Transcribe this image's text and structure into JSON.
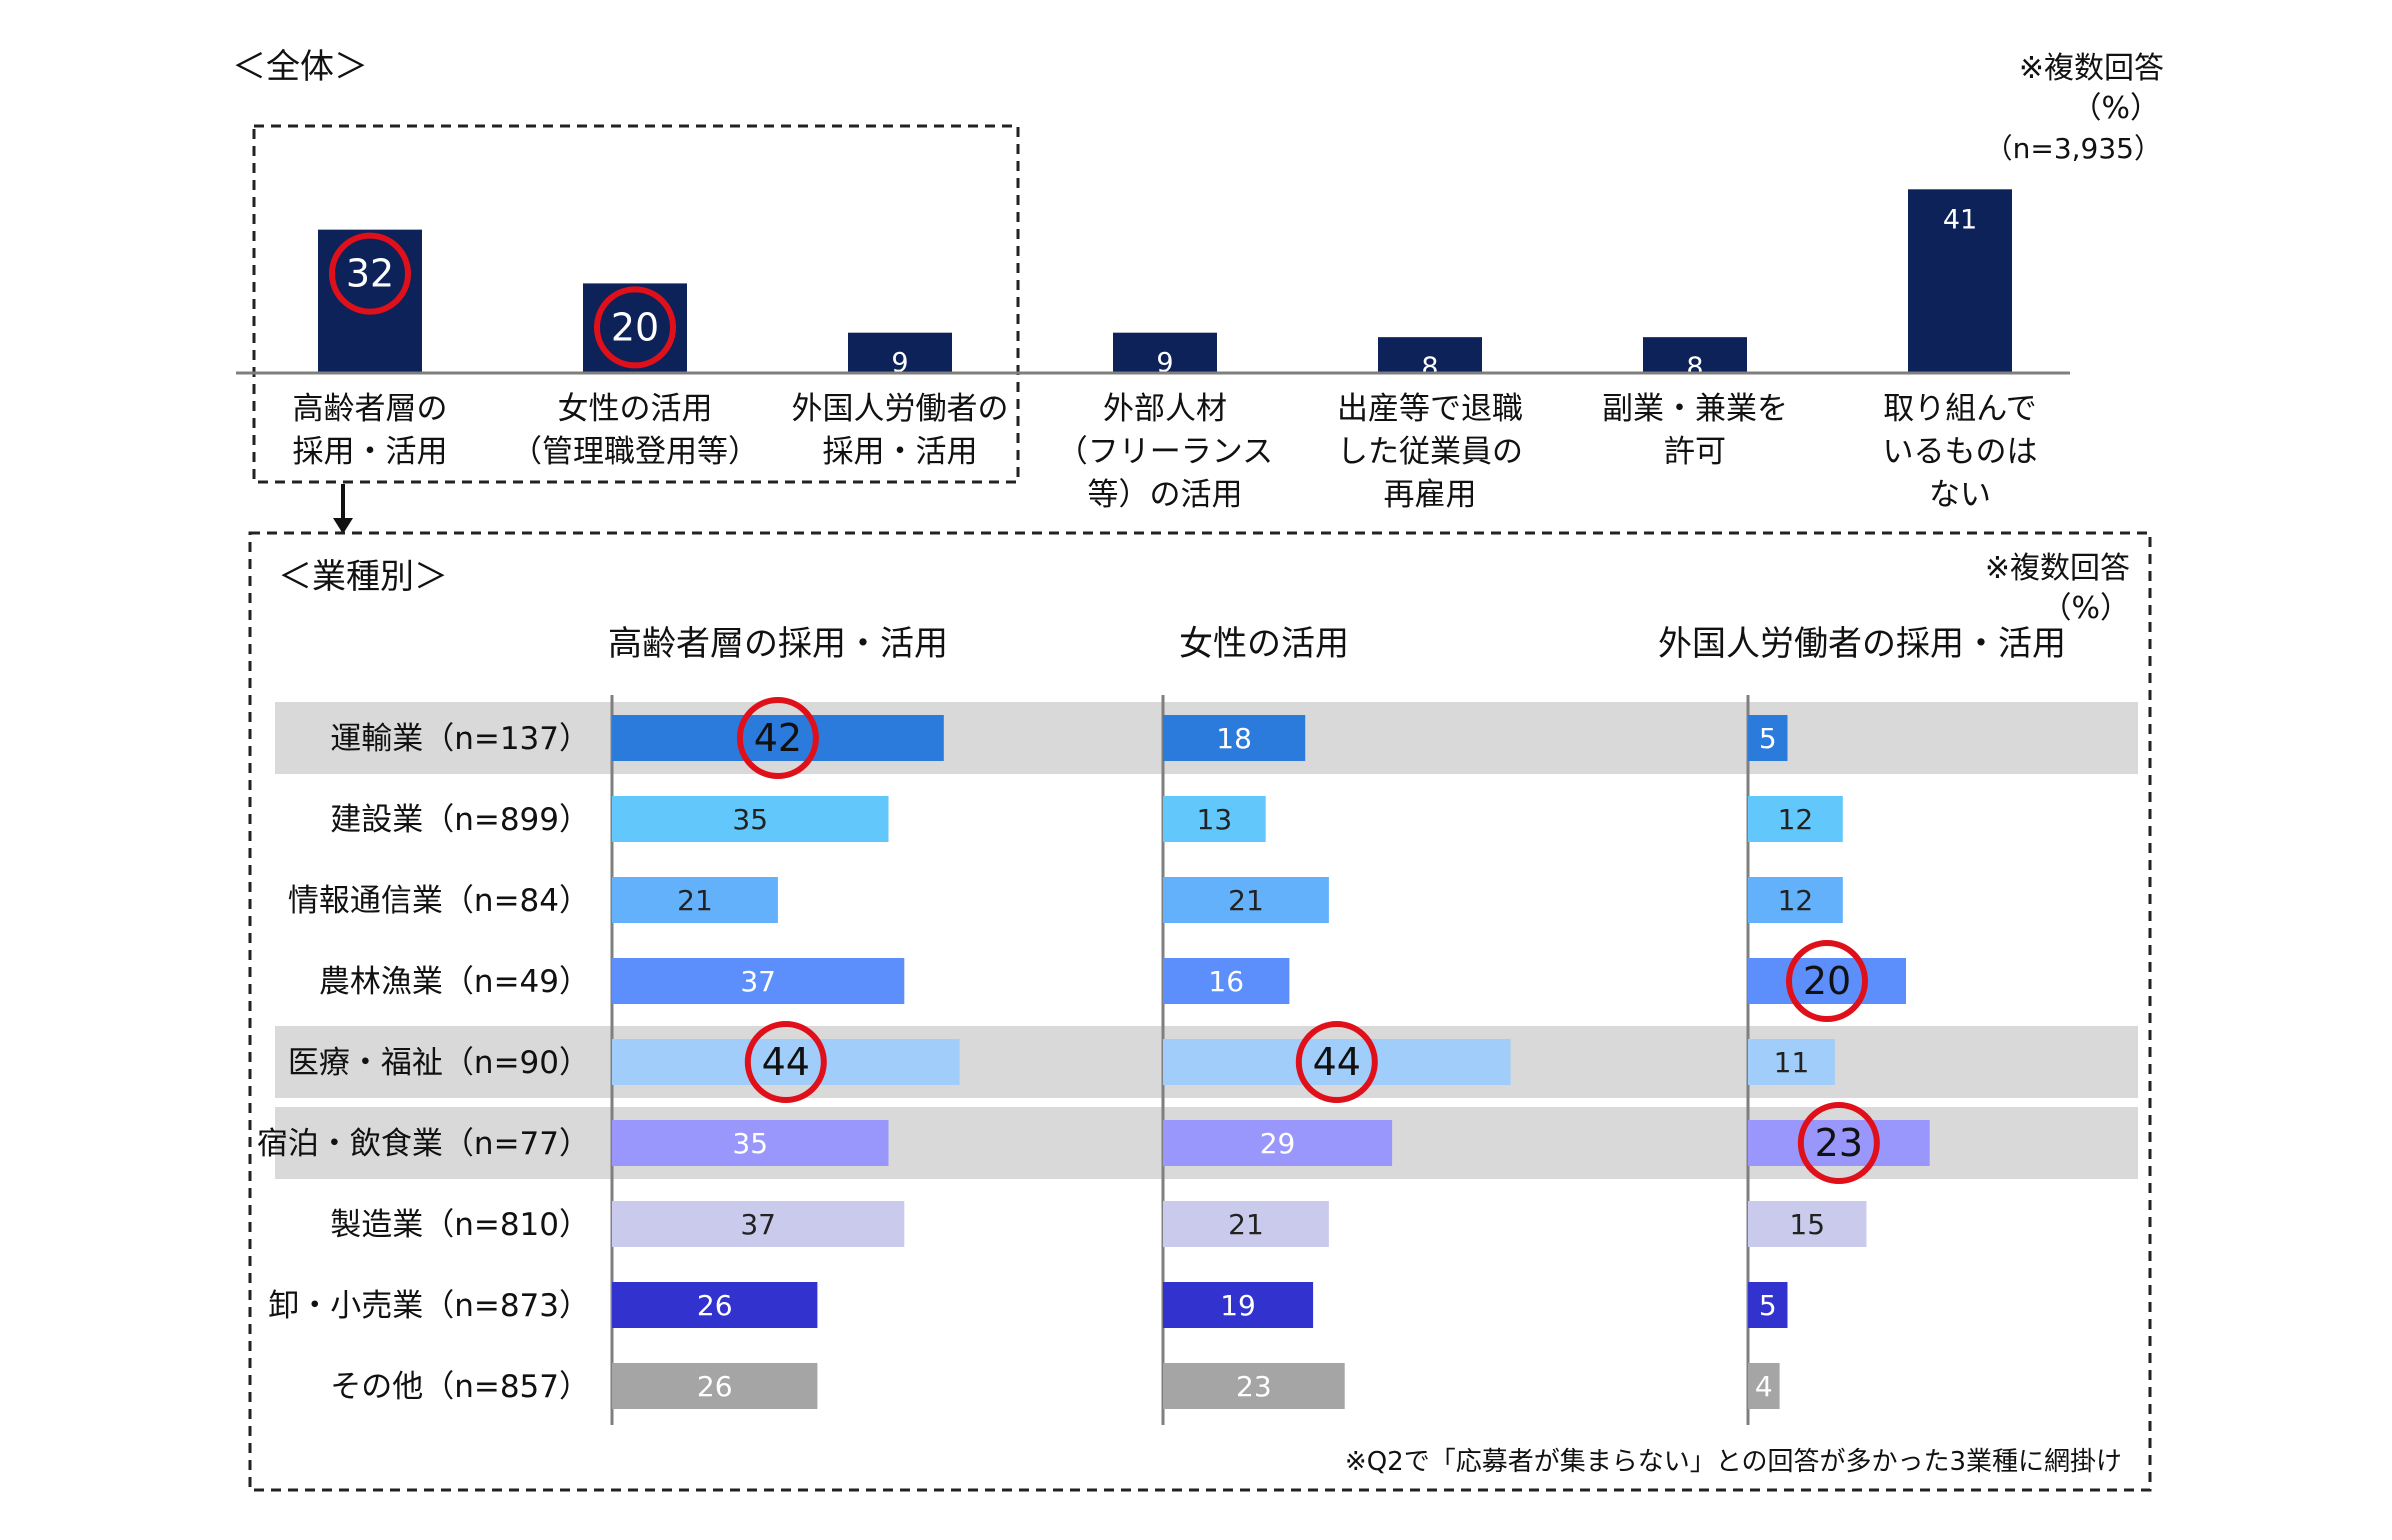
{
  "overall": {
    "title": "＜全体＞",
    "note_multi": "※複数回答",
    "unit": "（%）",
    "n_label": "（n=3,935）",
    "bar_color": "#0d2259",
    "highlight_color": "#e0101b"
  },
  "industry": {
    "title": "＜業種別＞",
    "note_multi": "※複数回答",
    "unit": "（%）",
    "footnote": "※Q2で「応募者が集まらない」との回答が多かった3業種に網掛け",
    "shade_color": "#d9d9d9"
  },
  "chart_data": [
    {
      "type": "bar",
      "title": "＜全体＞",
      "categories": [
        [
          "高齢者層の",
          "採用・活用"
        ],
        [
          "女性の活用",
          "（管理職登用等）"
        ],
        [
          "外国人労働者の",
          "採用・活用"
        ],
        [
          "外部人材",
          "（フリーランス",
          "等）の活用"
        ],
        [
          "出産等で退職",
          "した従業員の",
          "再雇用"
        ],
        [
          "副業・兼業を",
          "許可"
        ],
        [
          "取り組んで",
          "いるものは",
          "ない"
        ]
      ],
      "values": [
        32,
        20,
        9,
        9,
        8,
        8,
        41
      ],
      "highlighted": [
        0,
        1
      ],
      "boxed_categories": [
        0,
        1,
        2
      ],
      "ylim": [
        0,
        45
      ]
    },
    {
      "type": "bar",
      "orientation": "horizontal",
      "title": "＜業種別＞",
      "categories": [
        "運輸業（n=137）",
        "建設業（n=899）",
        "情報通信業（n=84）",
        "農林漁業（n=49）",
        "医療・福祉（n=90）",
        "宿泊・飲食業（n=77）",
        "製造業（n=810）",
        "卸・小売業（n=873）",
        "その他（n=857）"
      ],
      "shaded_rows": [
        0,
        4,
        5
      ],
      "row_colors": [
        "#2a7bdc",
        "#62c8fc",
        "#64b1fb",
        "#5c8ffc",
        "#a0cdf9",
        "#9997fb",
        "#cacbec",
        "#3233cf",
        "#a5a5a5"
      ],
      "series": [
        {
          "name": "高齢者層の採用・活用",
          "values": [
            42,
            35,
            21,
            37,
            44,
            35,
            37,
            26,
            26
          ],
          "highlighted": [
            0,
            4
          ]
        },
        {
          "name": "女性の活用",
          "values": [
            18,
            13,
            21,
            16,
            44,
            29,
            21,
            19,
            23
          ],
          "highlighted": [
            4
          ]
        },
        {
          "name": "外国人労働者の採用・活用",
          "values": [
            5,
            12,
            12,
            20,
            11,
            23,
            15,
            5,
            4
          ],
          "highlighted": [
            3,
            5
          ]
        }
      ]
    }
  ]
}
